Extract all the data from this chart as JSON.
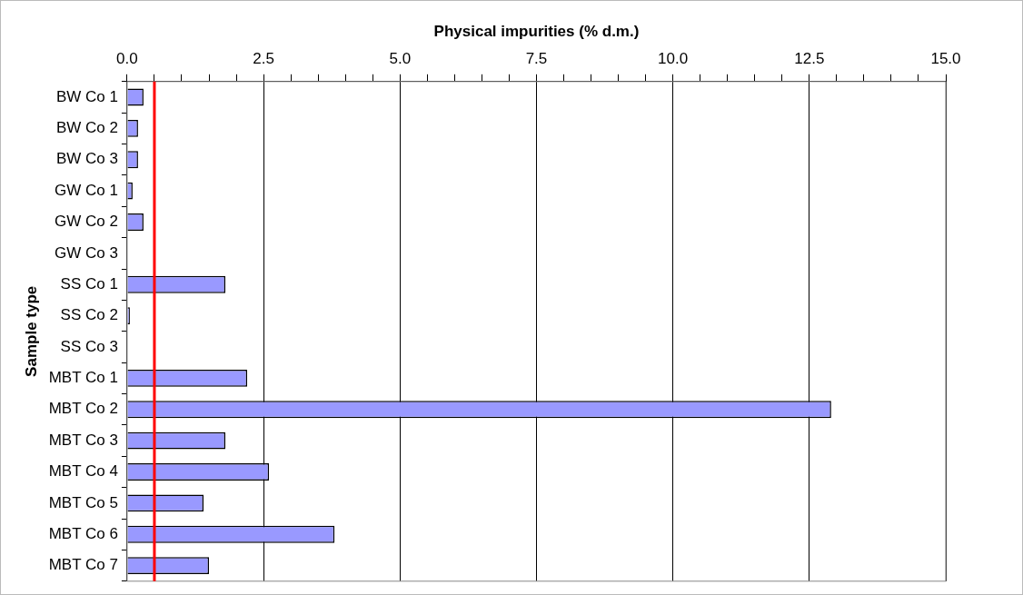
{
  "chart_data": {
    "type": "bar",
    "orientation": "horizontal",
    "xlabel": "Physical impurities (% d.m.)",
    "ylabel": "Sample type",
    "categories": [
      "BW Co 1",
      "BW Co 2",
      "BW Co 3",
      "GW Co 1",
      "GW Co 2",
      "GW Co 3",
      "SS Co 1",
      "SS Co 2",
      "SS Co 3",
      "MBT Co 1",
      "MBT Co 2",
      "MBT Co 3",
      "MBT Co 4",
      "MBT Co 5",
      "MBT Co 6",
      "MBT Co 7"
    ],
    "values": [
      0.3,
      0.2,
      0.2,
      0.1,
      0.3,
      null,
      1.8,
      0.05,
      null,
      2.2,
      12.9,
      1.8,
      2.6,
      1.4,
      3.8,
      1.5
    ],
    "color": "#9999ff",
    "xlim": [
      0,
      15
    ],
    "xticks": [
      {
        "value": 0,
        "label": "0.0"
      },
      {
        "value": 0.5,
        "label": null
      },
      {
        "value": 1,
        "label": null
      },
      {
        "value": 1.5,
        "label": null
      },
      {
        "value": 2,
        "label": null
      },
      {
        "value": 2.5,
        "label": "2.5"
      },
      {
        "value": 3,
        "label": null
      },
      {
        "value": 3.5,
        "label": null
      },
      {
        "value": 4,
        "label": null
      },
      {
        "value": 4.5,
        "label": null
      },
      {
        "value": 5,
        "label": "5.0"
      },
      {
        "value": 5.5,
        "label": null
      },
      {
        "value": 6,
        "label": null
      },
      {
        "value": 6.5,
        "label": null
      },
      {
        "value": 7,
        "label": null
      },
      {
        "value": 7.5,
        "label": "7.5"
      },
      {
        "value": 8,
        "label": null
      },
      {
        "value": 8.5,
        "label": null
      },
      {
        "value": 9,
        "label": null
      },
      {
        "value": 9.5,
        "label": null
      },
      {
        "value": 10,
        "label": "10.0"
      },
      {
        "value": 10.5,
        "label": null
      },
      {
        "value": 11,
        "label": null
      },
      {
        "value": 11.5,
        "label": null
      },
      {
        "value": 12,
        "label": null
      },
      {
        "value": 12.5,
        "label": "12.5"
      },
      {
        "value": 13,
        "label": null
      },
      {
        "value": 13.5,
        "label": null
      },
      {
        "value": 14,
        "label": null
      },
      {
        "value": 14.5,
        "label": null
      },
      {
        "value": 15,
        "label": "15.0"
      }
    ],
    "grid": "x",
    "legend": false,
    "ref_lines": [
      {
        "axis": "x",
        "value": 0.5,
        "color": "#ff0000"
      }
    ]
  }
}
